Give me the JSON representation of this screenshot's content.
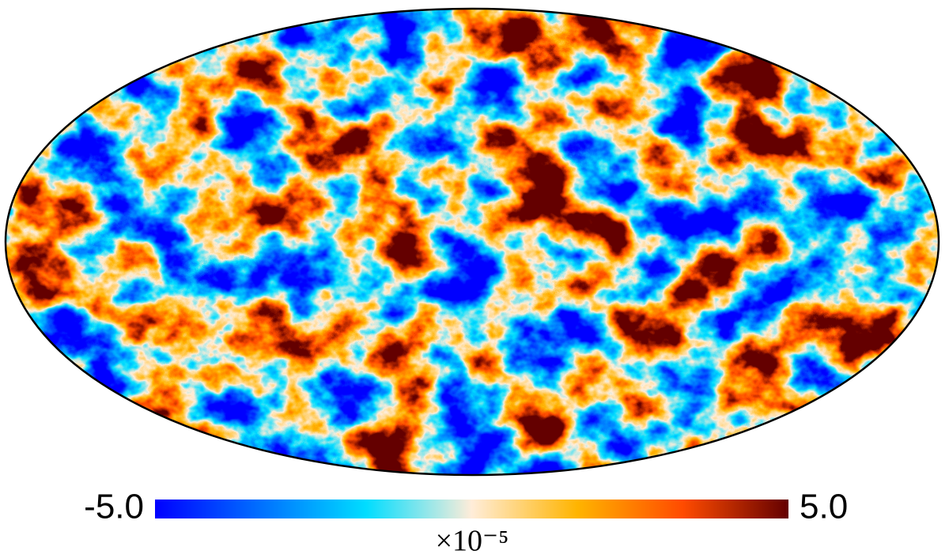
{
  "chart_data": {
    "type": "mollweide",
    "clim": [
      -5,
      5
    ],
    "ticks": [
      {
        "value": -5,
        "label": "-5.0"
      },
      {
        "value": 5,
        "label": "5.0"
      }
    ],
    "unit_label": "×10⁻⁵",
    "colormap": [
      "#0000ff",
      "#0070ff",
      "#00ddff",
      "#ffedd9",
      "#ffb400",
      "#ff4b00",
      "#640000"
    ]
  }
}
